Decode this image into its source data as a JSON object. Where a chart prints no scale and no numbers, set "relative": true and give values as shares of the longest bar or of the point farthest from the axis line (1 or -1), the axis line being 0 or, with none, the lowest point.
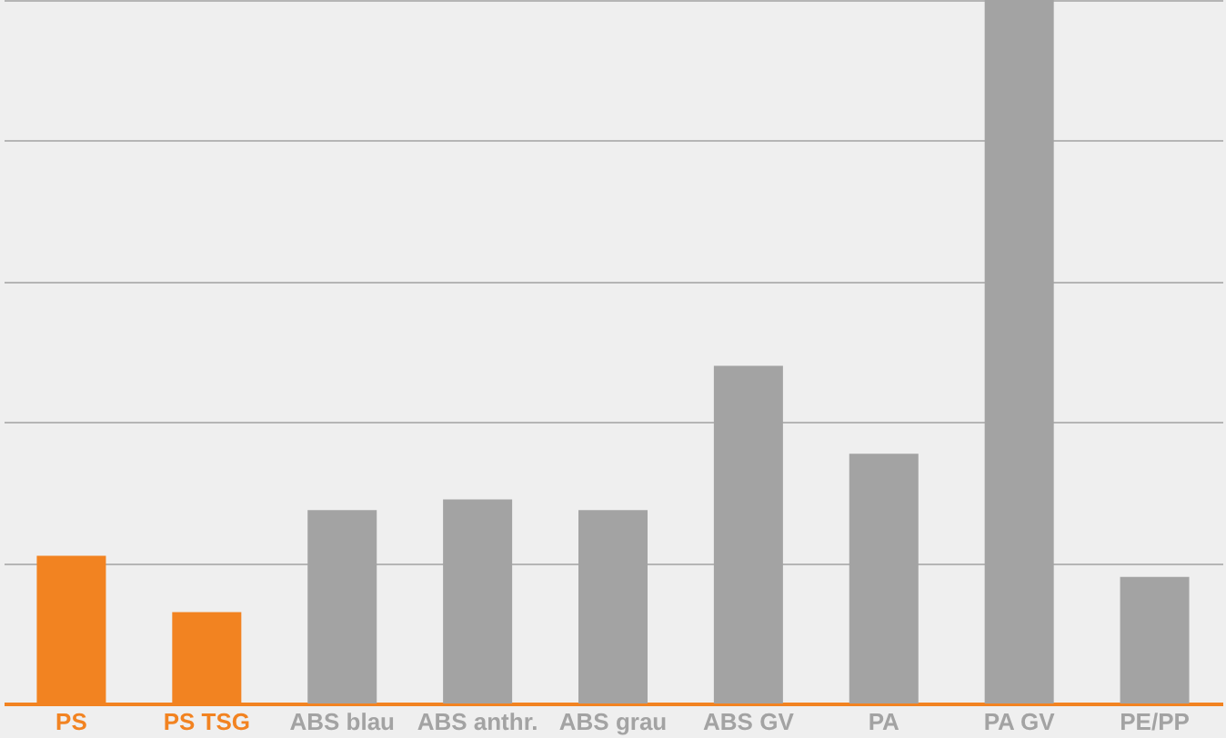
{
  "chart_data": {
    "type": "bar",
    "relative": true,
    "grid": "y",
    "categories": [
      "PS",
      "PS TSG",
      "ABS blau",
      "ABS anthr.",
      "ABS grau",
      "ABS GV",
      "PA",
      "PA GV",
      "PE/PP"
    ],
    "values": [
      0.21,
      0.13,
      0.275,
      0.29,
      0.275,
      0.48,
      0.355,
      1,
      0.18
    ],
    "colors": [
      "#f28321",
      "#f28321",
      "#a3a3a3",
      "#a3a3a3",
      "#a3a3a3",
      "#a3a3a3",
      "#a3a3a3",
      "#a3a3a3",
      "#a3a3a3"
    ]
  }
}
